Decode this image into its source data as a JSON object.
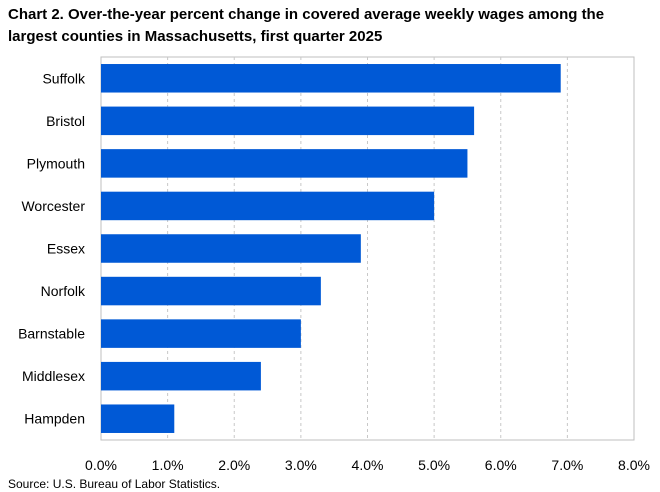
{
  "chart_data": {
    "type": "bar",
    "orientation": "horizontal",
    "title": "Chart 2. Over-the-year percent change in covered average weekly wages among the largest counties in Massachusetts, first quarter 2025",
    "categories": [
      "Suffolk",
      "Bristol",
      "Plymouth",
      "Worcester",
      "Essex",
      "Norfolk",
      "Barnstable",
      "Middlesex",
      "Hampden"
    ],
    "values": [
      6.9,
      5.6,
      5.5,
      5.0,
      3.9,
      3.3,
      3.0,
      2.4,
      1.1
    ],
    "xlim": [
      0,
      8
    ],
    "x_ticks": [
      "0.0%",
      "1.0%",
      "2.0%",
      "3.0%",
      "4.0%",
      "5.0%",
      "6.0%",
      "7.0%",
      "8.0%"
    ],
    "xlabel": "",
    "ylabel": "",
    "grid": "vertical dashed",
    "bar_color": "#0059d6",
    "source": "Source: U.S. Bureau of Labor Statistics."
  }
}
